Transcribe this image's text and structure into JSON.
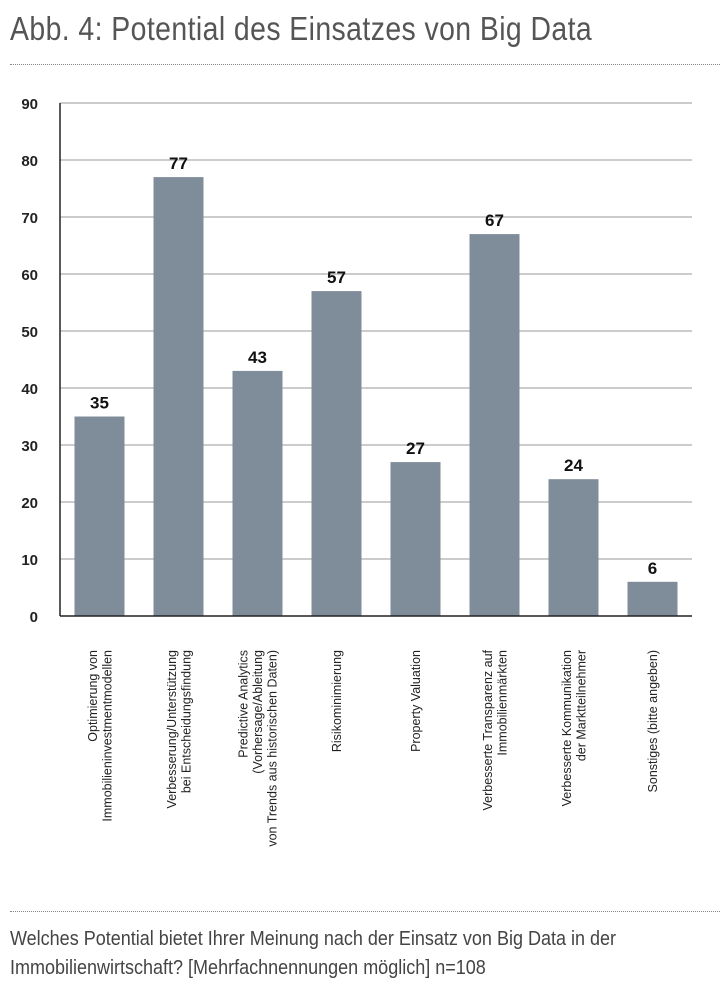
{
  "title": "Abb. 4: Potential des Einsatzes von Big Data",
  "caption": "Welches Potential bietet Ihrer Meinung nach der Einsatz von Big Data in der Immobilienwirtschaft? [Mehrfachnennungen möglich] n=108",
  "chart_data": {
    "type": "bar",
    "title": "",
    "xlabel": "",
    "ylabel": "",
    "ylim": [
      0,
      90
    ],
    "yticks": [
      0,
      10,
      20,
      30,
      40,
      50,
      60,
      70,
      80,
      90
    ],
    "grid": true,
    "bar_color": "#7f8c99",
    "categories": [
      [
        "Optimierung von",
        "Immobilieninvestmentmodellen"
      ],
      [
        "Verbesserung/Unterstützung",
        "bei Entscheidungsfindung"
      ],
      [
        "Predictive Analytics",
        "(Vorhersage/Ableitung",
        "von Trends aus historischen Daten)"
      ],
      [
        "Risikominimierung"
      ],
      [
        "Property Valuation"
      ],
      [
        "Verbesserte Transparenz auf",
        "Immobilienmärkten"
      ],
      [
        "Verbesserte Kommunikation",
        "der Marktteilnehmer"
      ],
      [
        "Sonstiges (bitte angeben)"
      ]
    ],
    "values": [
      35,
      77,
      43,
      57,
      27,
      67,
      24,
      6
    ]
  }
}
